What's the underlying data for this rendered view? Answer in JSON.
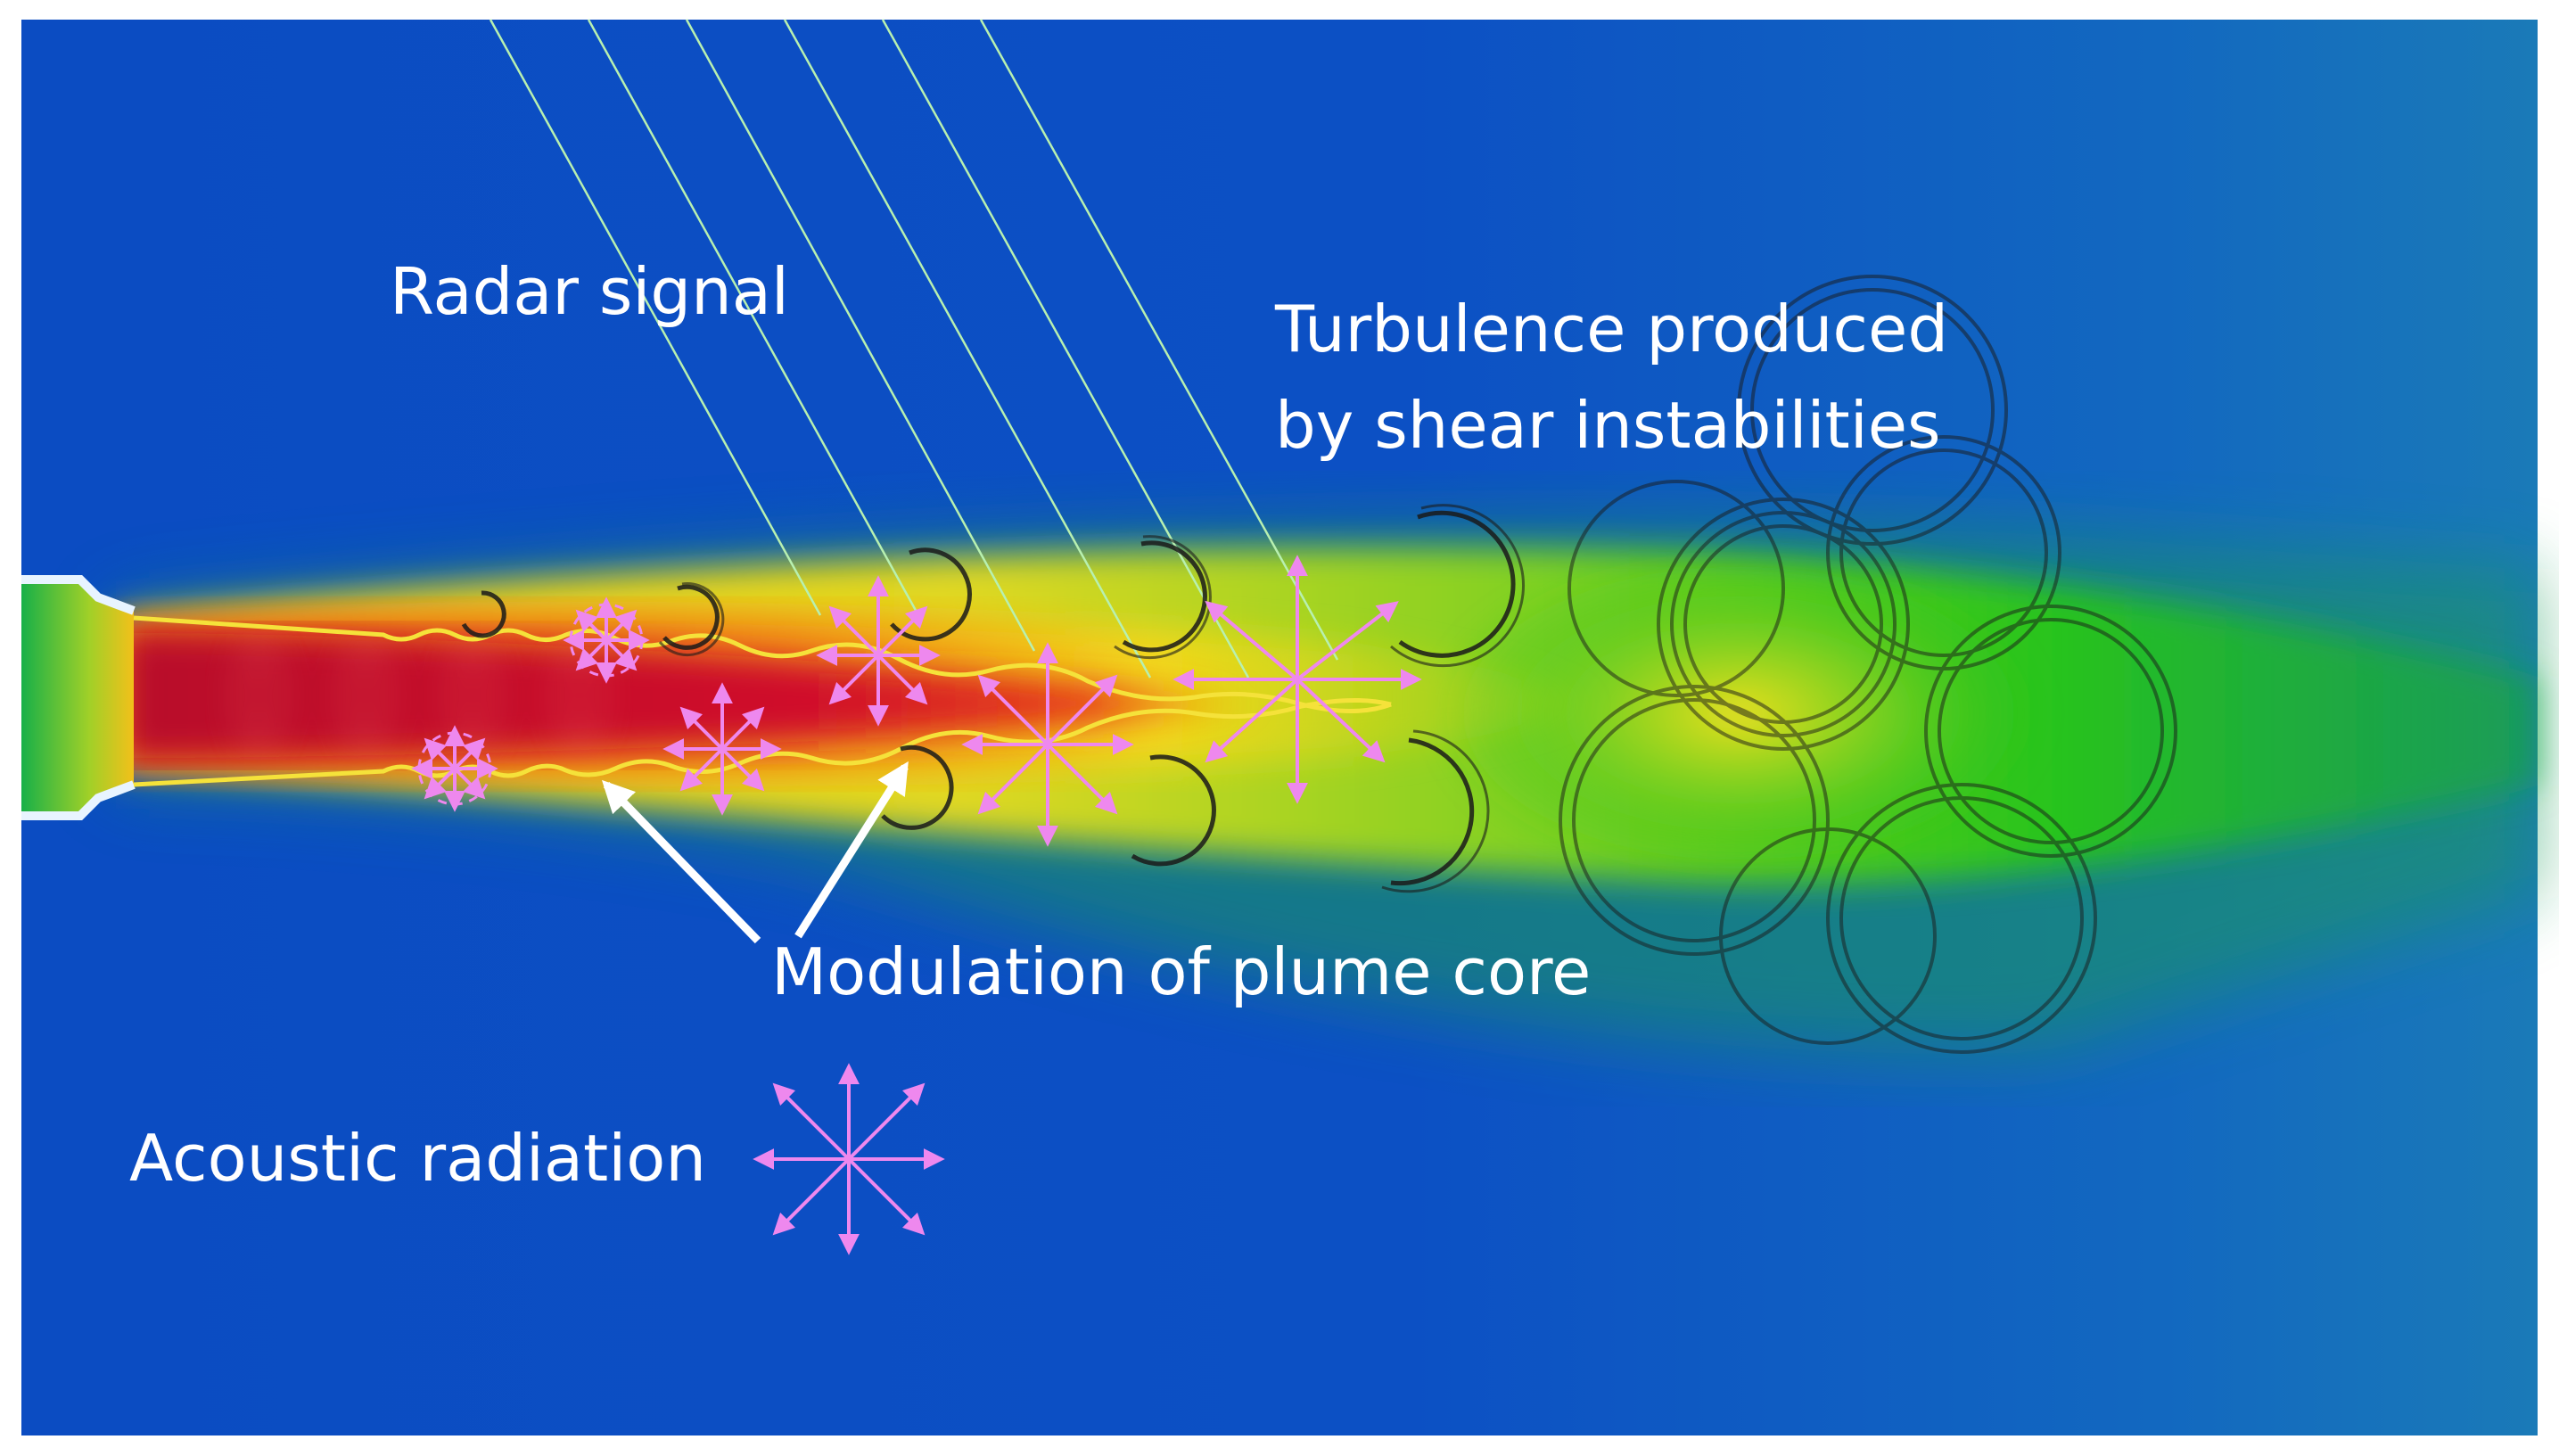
{
  "labels": {
    "radar_signal": "Radar signal",
    "turbulence_line1": "Turbulence produced",
    "turbulence_line2": "by shear instabilities",
    "modulation": "Modulation of plume core",
    "acoustic": "Acoustic radiation"
  },
  "colors": {
    "background_blue": "#0a4fc4",
    "plume_core_red": "#c8102e",
    "plume_orange": "#f07a1a",
    "plume_yellow": "#f2e21a",
    "plume_green": "#22c81e",
    "radar_lines": "#b8f0b0",
    "acoustic_arrows": "#ee88ee",
    "shear_layer": "#f5e23a",
    "vortex_rings": "#1a1a1a",
    "annotation_arrows": "#ffffff",
    "label_text": "#ffffff"
  },
  "icons": [
    "radar-beam-line",
    "acoustic-star-icon",
    "vortex-ring-icon",
    "pointer-arrow-icon",
    "nozzle-icon"
  ]
}
